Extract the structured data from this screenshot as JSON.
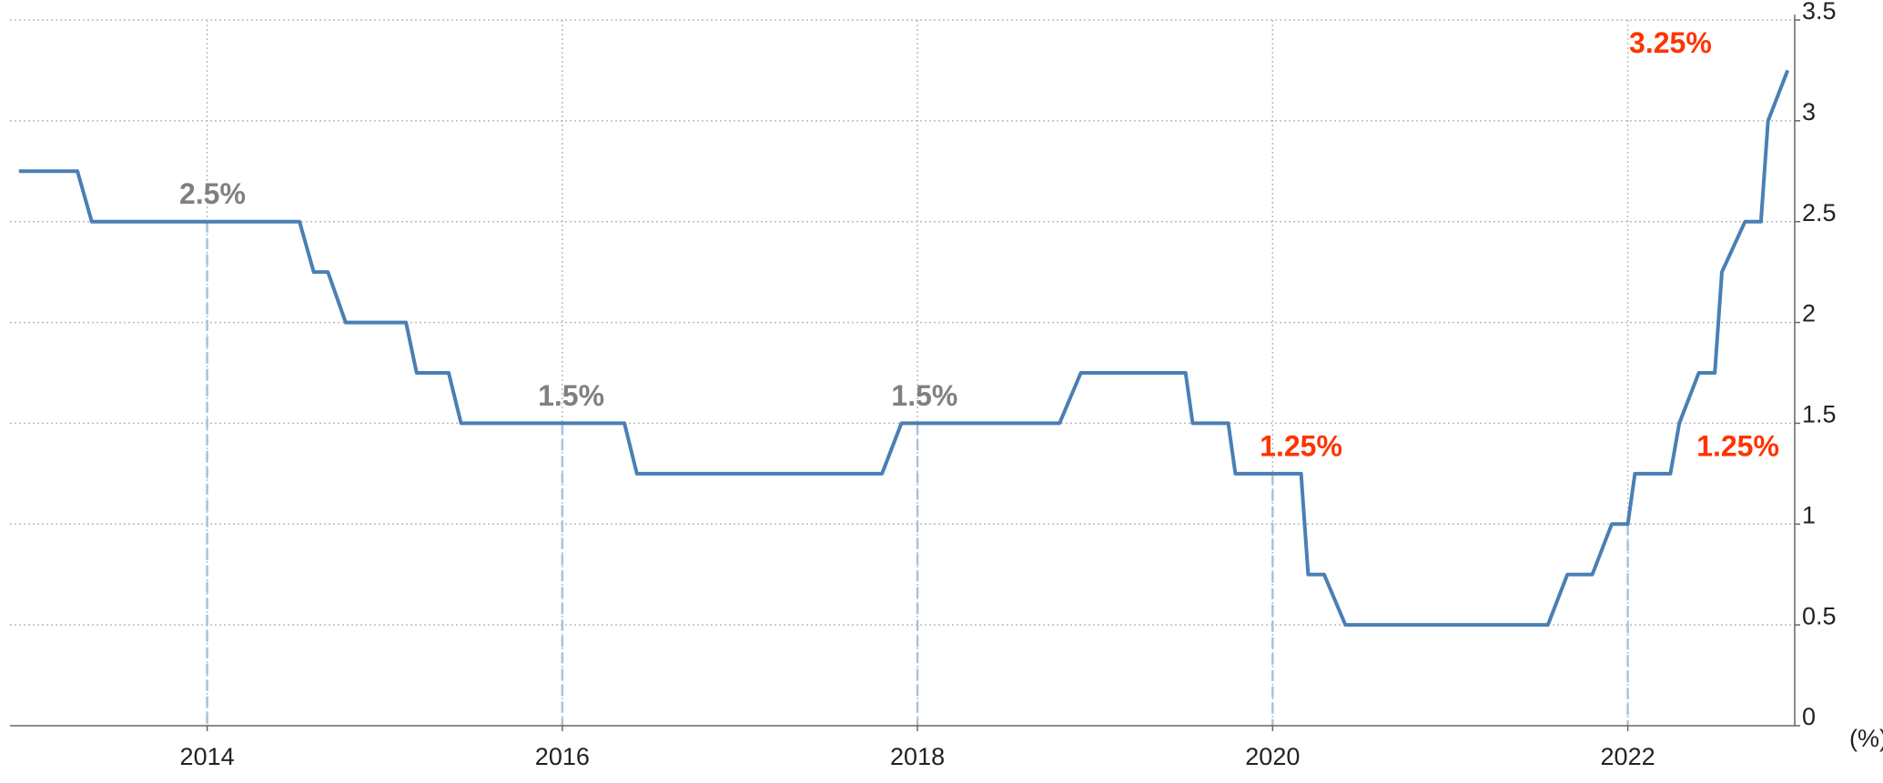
{
  "chart_data": {
    "type": "line",
    "y_unit_label": "(%)",
    "x": [
      2012.94,
      2013.27,
      2013.35,
      2014.52,
      2014.6,
      2014.68,
      2014.78,
      2015.12,
      2015.18,
      2015.36,
      2015.43,
      2016.35,
      2016.42,
      2017.8,
      2017.91,
      2018.8,
      2018.92,
      2019.51,
      2019.55,
      2019.75,
      2019.79,
      2020.16,
      2020.2,
      2020.29,
      2020.41,
      2021.55,
      2021.66,
      2021.8,
      2021.91,
      2022.0,
      2022.04,
      2022.24,
      2022.29,
      2022.4,
      2022.49,
      2022.53,
      2022.66,
      2022.75,
      2022.79,
      2022.9
    ],
    "series": [
      {
        "color": "#4a7fb5",
        "values": [
          2.75,
          2.75,
          2.5,
          2.5,
          2.25,
          2.25,
          2.0,
          2.0,
          1.75,
          1.75,
          1.5,
          1.5,
          1.25,
          1.25,
          1.5,
          1.5,
          1.75,
          1.75,
          1.5,
          1.5,
          1.25,
          1.25,
          0.75,
          0.75,
          0.5,
          0.5,
          0.75,
          0.75,
          1.0,
          1.0,
          1.25,
          1.25,
          1.5,
          1.75,
          1.75,
          2.25,
          2.5,
          2.5,
          3.0,
          3.25
        ]
      }
    ],
    "annotations": [
      {
        "label": "2.5%",
        "x": 2014.03,
        "value": 2.5,
        "color": "#808080"
      },
      {
        "label": "1.5%",
        "x": 2016.05,
        "value": 1.5,
        "color": "#808080"
      },
      {
        "label": "1.5%",
        "x": 2018.04,
        "value": 1.5,
        "color": "#808080"
      },
      {
        "label": "1.25%",
        "x": 2020.16,
        "value": 1.25,
        "color": "#ff3300"
      },
      {
        "label": "3.25%",
        "x": 2022.24,
        "value": 3.25,
        "color": "#ff3300"
      },
      {
        "label": "1.25%",
        "x": 2022.62,
        "value": 1.25,
        "color": "#ff3300"
      }
    ],
    "xlim": [
      2012.89,
      2022.94
    ],
    "xticks": [
      2014,
      2016,
      2018,
      2020,
      2022
    ],
    "ylim": [
      0,
      3.5
    ],
    "yticks": [
      0,
      0.5,
      1,
      1.5,
      2,
      2.5,
      3,
      3.5
    ],
    "grid": true
  }
}
